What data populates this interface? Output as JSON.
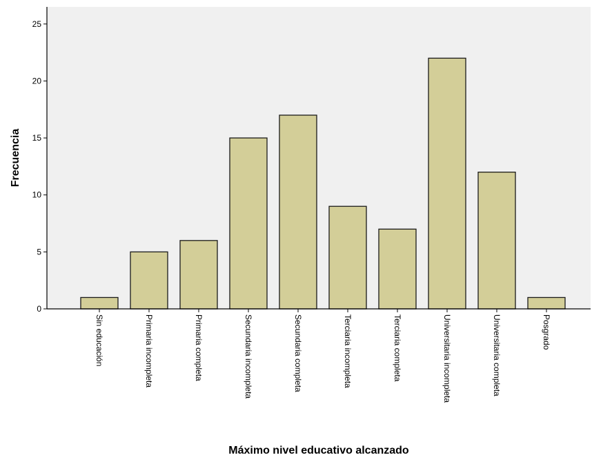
{
  "chart_data": {
    "type": "bar",
    "title": "",
    "xlabel": "Máximo nivel educativo alcanzado",
    "ylabel": "Frecuencia",
    "categories": [
      "Sin educación",
      "Primaria incompleta",
      "Primaria completa",
      "Secundaria incompleta",
      "Secundaria completa",
      "Terciaria incompleta",
      "Terciaria completa",
      "Universitaria incompleta",
      "Universitaria completa",
      "Posgrado"
    ],
    "values": [
      1,
      5,
      6,
      15,
      17,
      9,
      7,
      22,
      12,
      1
    ],
    "ylim": [
      0,
      26.5
    ],
    "yticks": [
      0,
      5,
      10,
      15,
      20,
      25
    ],
    "grid": false,
    "legend": "none",
    "colors": {
      "bar_fill": "#d3ce98",
      "bar_stroke": "#1a1a1a",
      "plot_background": "#f0f0f0",
      "axis": "#000000"
    }
  }
}
